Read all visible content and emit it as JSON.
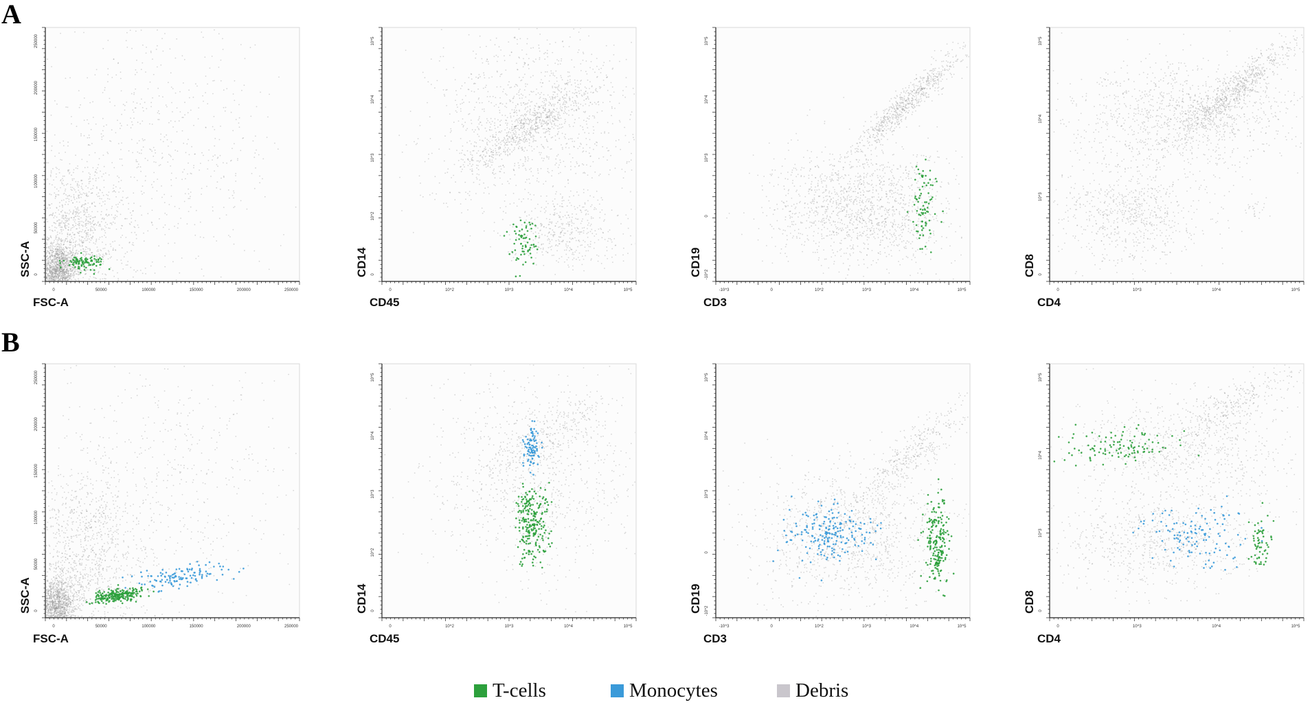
{
  "rows": [
    {
      "label": "A"
    },
    {
      "label": "B"
    }
  ],
  "colors": {
    "tcells": "#2ca03c",
    "monocytes": "#3a9ad9",
    "debris": "#b8b8bc",
    "background_events": "#8f8f8f"
  },
  "legend": [
    {
      "label": "T-cells",
      "color": "#2ca03c"
    },
    {
      "label": "Monocytes",
      "color": "#3a9ad9"
    },
    {
      "label": "Debris",
      "color": "#c9c6cc"
    }
  ],
  "chart_data": [
    {
      "id": "A1",
      "type": "scatter",
      "row": "A",
      "xlabel": "FSC-A",
      "ylabel": "SSC-A",
      "xscale": "linear",
      "yscale": "linear",
      "xlim": [
        0,
        262144
      ],
      "ylim": [
        0,
        262144
      ],
      "xticks": [
        "0",
        "50000",
        "100000",
        "150000",
        "200000",
        "250000"
      ],
      "yticks": [
        "0",
        "50000",
        "100000",
        "150000",
        "200000",
        "250000"
      ],
      "populations": [
        {
          "name": "Debris",
          "cx": 12000,
          "cy": 10000,
          "sx": 10000,
          "sy": 14000,
          "n": 1400
        },
        {
          "name": "Debris",
          "cx": 30000,
          "cy": 45000,
          "sx": 25000,
          "sy": 40000,
          "n": 1200
        },
        {
          "name": "Debris",
          "cx": 110000,
          "cy": 130000,
          "sx": 70000,
          "sy": 70000,
          "n": 700
        },
        {
          "name": "T-cells",
          "cx": 40000,
          "cy": 20000,
          "sx": 10000,
          "sy": 3500,
          "n": 90
        }
      ]
    },
    {
      "id": "A2",
      "type": "scatter",
      "row": "A",
      "xlabel": "CD45",
      "ylabel": "CD14",
      "xscale": "log",
      "yscale": "log",
      "xlim": [
        1,
        5.5
      ],
      "ylim": [
        0.4,
        5.5
      ],
      "xticks": [
        "0",
        "10^2",
        "10^3",
        "10^4",
        "10^5"
      ],
      "yticks": [
        "0",
        "10^2",
        "10^3",
        "10^4",
        "10^5"
      ],
      "populations": [
        {
          "name": "Debris",
          "cx": 3.7,
          "cy": 3.6,
          "sx": 0.9,
          "sy": 0.9,
          "n": 1100
        },
        {
          "name": "Debris",
          "cx": 3.6,
          "cy": 3.5,
          "sx": 0.6,
          "sy": 0.5,
          "n": 600,
          "corr": 0.9
        },
        {
          "name": "Debris",
          "cx": 4.2,
          "cy": 1.4,
          "sx": 0.5,
          "sy": 0.35,
          "n": 400
        },
        {
          "name": "T-cells",
          "cx": 3.5,
          "cy": 1.2,
          "sx": 0.12,
          "sy": 0.25,
          "n": 70
        }
      ]
    },
    {
      "id": "A3",
      "type": "scatter",
      "row": "A",
      "xlabel": "CD3",
      "ylabel": "CD19",
      "xscale": "log",
      "yscale": "log",
      "xlim": [
        0.5,
        5.5
      ],
      "ylim": [
        0.3,
        5.5
      ],
      "xticks": [
        "-10^3",
        "0",
        "10^2",
        "10^3",
        "10^4",
        "10^5"
      ],
      "yticks": [
        "-10^2",
        "0",
        "10^3",
        "10^4",
        "10^5"
      ],
      "populations": [
        {
          "name": "Debris",
          "cx": 3.4,
          "cy": 1.8,
          "sx": 0.9,
          "sy": 0.6,
          "n": 1400
        },
        {
          "name": "Debris",
          "cx": 4.3,
          "cy": 4.0,
          "sx": 0.55,
          "sy": 0.55,
          "n": 700,
          "corr": 0.95
        },
        {
          "name": "T-cells",
          "cx": 4.6,
          "cy": 1.7,
          "sx": 0.12,
          "sy": 0.5,
          "n": 80
        }
      ]
    },
    {
      "id": "A4",
      "type": "scatter",
      "row": "A",
      "xlabel": "CD4",
      "ylabel": "CD8",
      "xscale": "log",
      "yscale": "log",
      "xlim": [
        0.6,
        5.5
      ],
      "ylim": [
        0.6,
        5.5
      ],
      "xticks": [
        "0",
        "10^3",
        "10^4",
        "10^5"
      ],
      "yticks": [
        "0",
        "10^3",
        "10^4",
        "10^5"
      ],
      "populations": [
        {
          "name": "Debris",
          "cx": 3.2,
          "cy": 3.8,
          "sx": 1.1,
          "sy": 0.5,
          "n": 1100
        },
        {
          "name": "Debris",
          "cx": 4.2,
          "cy": 4.3,
          "sx": 0.6,
          "sy": 0.5,
          "n": 700,
          "corr": 0.93
        },
        {
          "name": "Debris",
          "cx": 2.2,
          "cy": 1.9,
          "sx": 0.7,
          "sy": 0.5,
          "n": 700
        },
        {
          "name": "Debris",
          "cx": 4.6,
          "cy": 2.0,
          "sx": 0.1,
          "sy": 0.12,
          "n": 25
        }
      ]
    },
    {
      "id": "B1",
      "type": "scatter",
      "row": "B",
      "xlabel": "FSC-A",
      "ylabel": "SSC-A",
      "xscale": "linear",
      "yscale": "linear",
      "xlim": [
        0,
        262144
      ],
      "ylim": [
        0,
        262144
      ],
      "xticks": [
        "0",
        "50000",
        "100000",
        "150000",
        "200000",
        "250000"
      ],
      "yticks": [
        "0",
        "50000",
        "100000",
        "150000",
        "200000",
        "250000"
      ],
      "populations": [
        {
          "name": "Debris",
          "cx": 12000,
          "cy": 12000,
          "sx": 10000,
          "sy": 14000,
          "n": 1300
        },
        {
          "name": "Debris",
          "cx": 40000,
          "cy": 60000,
          "sx": 30000,
          "sy": 45000,
          "n": 1000
        },
        {
          "name": "Debris",
          "cx": 120000,
          "cy": 130000,
          "sx": 70000,
          "sy": 70000,
          "n": 600
        },
        {
          "name": "T-cells",
          "cx": 75000,
          "cy": 23000,
          "sx": 14000,
          "sy": 4000,
          "n": 220,
          "corr": 0.6
        },
        {
          "name": "Monocytes",
          "cx": 140000,
          "cy": 42000,
          "sx": 25000,
          "sy": 7000,
          "n": 120,
          "corr": 0.6
        }
      ]
    },
    {
      "id": "B2",
      "type": "scatter",
      "row": "B",
      "xlabel": "CD45",
      "ylabel": "CD14",
      "xscale": "log",
      "yscale": "log",
      "xlim": [
        1,
        5.5
      ],
      "ylim": [
        0.4,
        5.5
      ],
      "xticks": [
        "0",
        "10^2",
        "10^3",
        "10^4",
        "10^5"
      ],
      "yticks": [
        "0",
        "10^2",
        "10^3",
        "10^4",
        "10^5"
      ],
      "populations": [
        {
          "name": "Debris",
          "cx": 3.7,
          "cy": 3.2,
          "sx": 0.9,
          "sy": 1.0,
          "n": 900
        },
        {
          "name": "Debris",
          "cx": 3.9,
          "cy": 4.0,
          "sx": 0.6,
          "sy": 0.5,
          "n": 300,
          "corr": 0.85
        },
        {
          "name": "Monocytes",
          "cx": 3.65,
          "cy": 3.85,
          "sx": 0.07,
          "sy": 0.22,
          "n": 90
        },
        {
          "name": "T-cells",
          "cx": 3.65,
          "cy": 2.3,
          "sx": 0.15,
          "sy": 0.4,
          "n": 240
        }
      ]
    },
    {
      "id": "B3",
      "type": "scatter",
      "row": "B",
      "xlabel": "CD3",
      "ylabel": "CD19",
      "xscale": "log",
      "yscale": "log",
      "xlim": [
        0.5,
        5.5
      ],
      "ylim": [
        0.3,
        5.5
      ],
      "xticks": [
        "-10^3",
        "0",
        "10^2",
        "10^3",
        "10^4",
        "10^5"
      ],
      "yticks": [
        "-10^2",
        "0",
        "10^3",
        "10^4",
        "10^5"
      ],
      "populations": [
        {
          "name": "Debris",
          "cx": 3.2,
          "cy": 2.0,
          "sx": 1.0,
          "sy": 0.7,
          "n": 1100
        },
        {
          "name": "Debris",
          "cx": 4.3,
          "cy": 3.6,
          "sx": 0.6,
          "sy": 0.6,
          "n": 400,
          "corr": 0.9
        },
        {
          "name": "Monocytes",
          "cx": 2.7,
          "cy": 2.0,
          "sx": 0.45,
          "sy": 0.3,
          "n": 200
        },
        {
          "name": "T-cells",
          "cx": 4.85,
          "cy": 1.9,
          "sx": 0.12,
          "sy": 0.45,
          "n": 200
        }
      ]
    },
    {
      "id": "B4",
      "type": "scatter",
      "row": "B",
      "xlabel": "CD4",
      "ylabel": "CD8",
      "xscale": "log",
      "yscale": "log",
      "xlim": [
        0.6,
        5.5
      ],
      "ylim": [
        0.6,
        5.5
      ],
      "xticks": [
        "0",
        "10^3",
        "10^4",
        "10^5"
      ],
      "yticks": [
        "0",
        "10^3",
        "10^4",
        "10^5"
      ],
      "populations": [
        {
          "name": "Debris",
          "cx": 3.2,
          "cy": 3.8,
          "sx": 1.1,
          "sy": 0.6,
          "n": 800
        },
        {
          "name": "Debris",
          "cx": 2.6,
          "cy": 2.0,
          "sx": 0.9,
          "sy": 0.45,
          "n": 700
        },
        {
          "name": "Debris",
          "cx": 4.2,
          "cy": 4.7,
          "sx": 0.6,
          "sy": 0.4,
          "n": 300,
          "corr": 0.8
        },
        {
          "name": "T-cells",
          "cx": 2.0,
          "cy": 3.9,
          "sx": 0.6,
          "sy": 0.18,
          "n": 110
        },
        {
          "name": "Monocytes",
          "cx": 3.4,
          "cy": 2.2,
          "sx": 0.5,
          "sy": 0.3,
          "n": 120
        },
        {
          "name": "T-cells",
          "cx": 4.65,
          "cy": 2.0,
          "sx": 0.1,
          "sy": 0.25,
          "n": 60
        }
      ]
    }
  ]
}
